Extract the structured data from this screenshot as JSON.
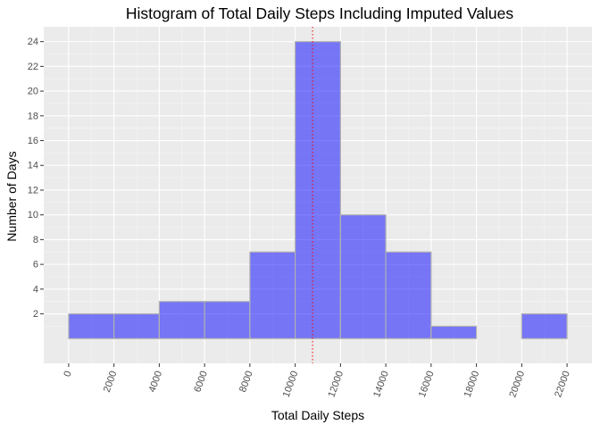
{
  "chart_data": {
    "type": "bar",
    "title": "Histogram of Total Daily Steps Including Imputed Values",
    "xlabel": "Total Daily Steps",
    "ylabel": "Number of Days",
    "bins": [
      {
        "start": 0,
        "end": 2000,
        "count": 2
      },
      {
        "start": 2000,
        "end": 4000,
        "count": 2
      },
      {
        "start": 4000,
        "end": 6000,
        "count": 3
      },
      {
        "start": 6000,
        "end": 8000,
        "count": 3
      },
      {
        "start": 8000,
        "end": 10000,
        "count": 7
      },
      {
        "start": 10000,
        "end": 12000,
        "count": 24
      },
      {
        "start": 12000,
        "end": 14000,
        "count": 10
      },
      {
        "start": 14000,
        "end": 16000,
        "count": 7
      },
      {
        "start": 16000,
        "end": 18000,
        "count": 1
      },
      {
        "start": 18000,
        "end": 20000,
        "count": 0
      },
      {
        "start": 20000,
        "end": 22000,
        "count": 2
      }
    ],
    "x_ticks": [
      "0",
      "2000",
      "4000",
      "6000",
      "8000",
      "10000",
      "12000",
      "14000",
      "16000",
      "18000",
      "20000",
      "22000"
    ],
    "y_ticks": [
      "2",
      "4",
      "6",
      "8",
      "10",
      "12",
      "14",
      "16",
      "18",
      "20",
      "22",
      "24"
    ],
    "xlim": [
      -1100,
      23100
    ],
    "ylim": [
      -2,
      25.2
    ],
    "reference_line": {
      "x": 10766,
      "style": "dotted",
      "color": "#ff0000"
    },
    "bar_fill": "#0000ff",
    "bar_opacity": 0.5,
    "bar_outline": "#b3b3b3",
    "panel_background": "#ebebeb",
    "grid": true,
    "legend": "none"
  }
}
